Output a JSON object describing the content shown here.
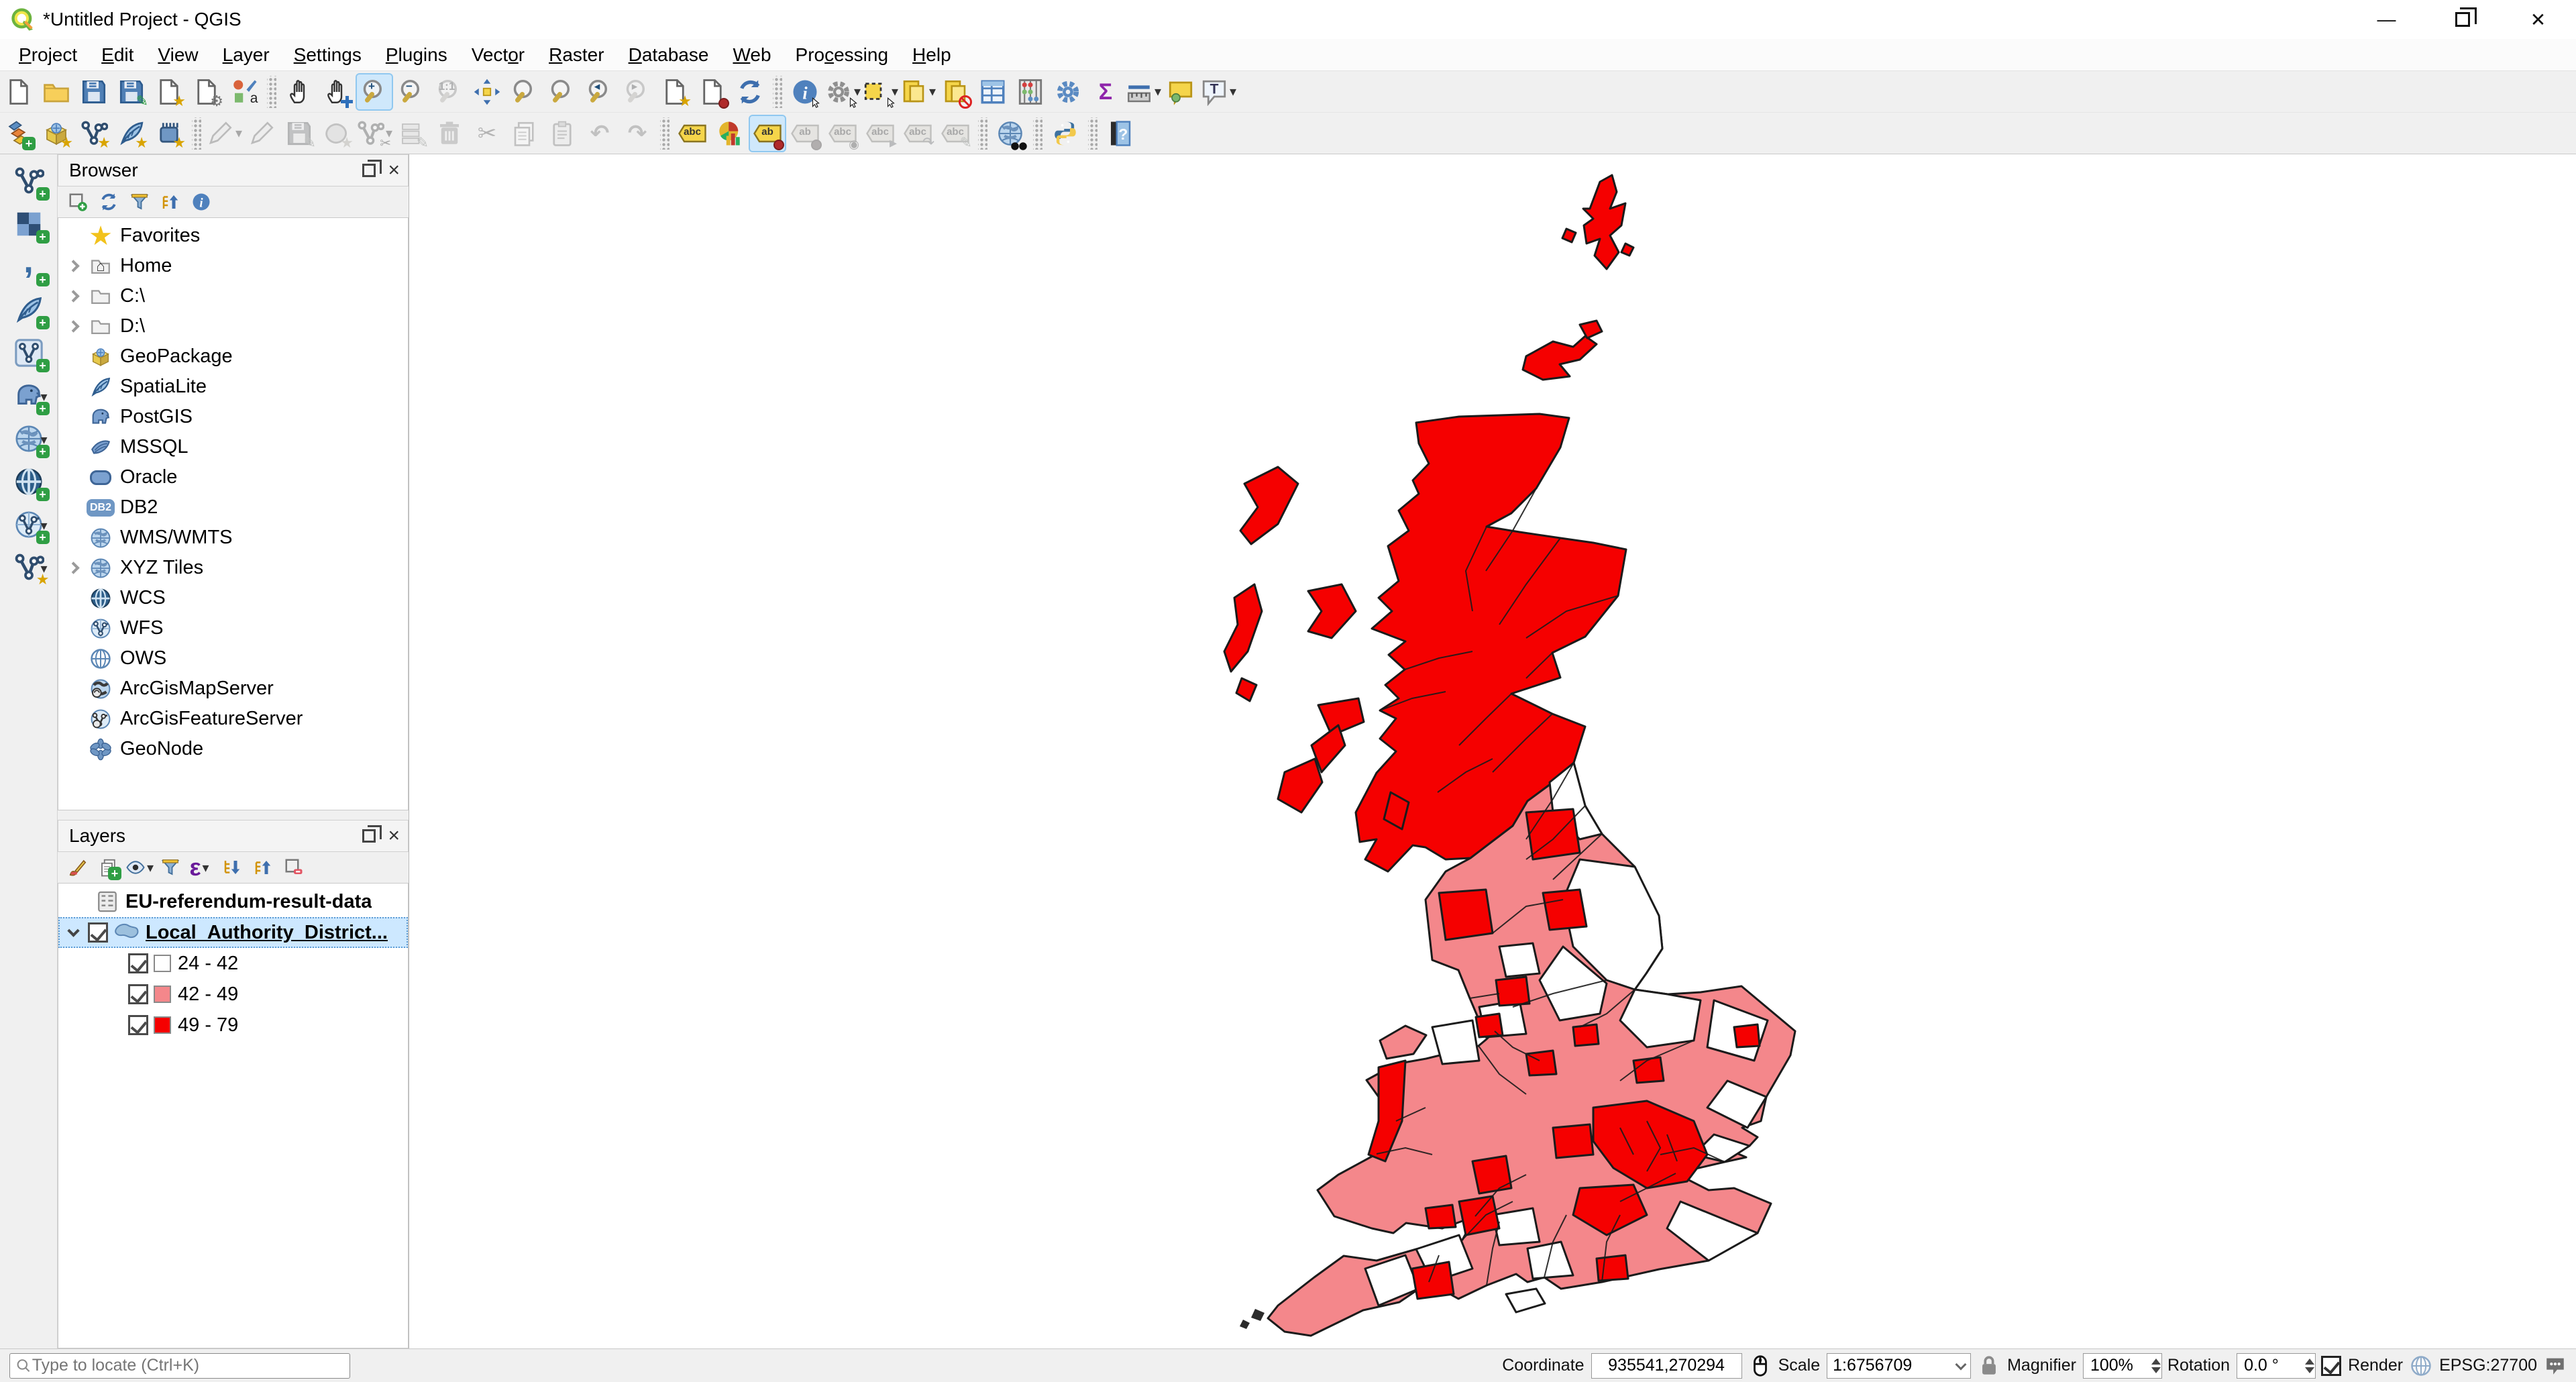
{
  "window": {
    "title": "*Untitled Project - QGIS"
  },
  "menubar": {
    "items": [
      {
        "name": "project",
        "pre": "",
        "key": "P",
        "post": "roject"
      },
      {
        "name": "edit",
        "pre": "",
        "key": "E",
        "post": "dit"
      },
      {
        "name": "view",
        "pre": "",
        "key": "V",
        "post": "iew"
      },
      {
        "name": "layer",
        "pre": "",
        "key": "L",
        "post": "ayer"
      },
      {
        "name": "settings",
        "pre": "",
        "key": "S",
        "post": "ettings"
      },
      {
        "name": "plugins",
        "pre": "",
        "key": "P",
        "post": "lugins"
      },
      {
        "name": "vector",
        "pre": "Vect",
        "key": "o",
        "post": "r"
      },
      {
        "name": "raster",
        "pre": "",
        "key": "R",
        "post": "aster"
      },
      {
        "name": "database",
        "pre": "",
        "key": "D",
        "post": "atabase"
      },
      {
        "name": "web",
        "pre": "",
        "key": "W",
        "post": "eb"
      },
      {
        "name": "processing",
        "pre": "Pro",
        "key": "c",
        "post": "essing"
      },
      {
        "name": "help",
        "pre": "",
        "key": "H",
        "post": "elp"
      }
    ]
  },
  "toolbars": {
    "row1": [
      {
        "name": "new-project",
        "icon": "page"
      },
      {
        "name": "open-project",
        "icon": "folder"
      },
      {
        "name": "save-project",
        "icon": "floppy"
      },
      {
        "name": "save-project-as",
        "icon": "floppy",
        "badge": "pencil"
      },
      {
        "name": "new-print-layout",
        "icon": "page",
        "badge": "star"
      },
      {
        "name": "show-layout-manager",
        "icon": "page",
        "badge": "wrench"
      },
      {
        "name": "style-manager",
        "icon": "style"
      },
      {
        "sep": true
      },
      {
        "name": "pan-map",
        "icon": "hand"
      },
      {
        "name": "pan-map-to-selection",
        "icon": "hand",
        "badge": "arrows"
      },
      {
        "name": "zoom-in",
        "icon": "mag",
        "glyph": "+",
        "active": true
      },
      {
        "name": "zoom-out",
        "icon": "mag",
        "glyph": "−"
      },
      {
        "name": "zoom-native-resolution",
        "icon": "mag",
        "glyph": "1:1",
        "disabled": true
      },
      {
        "name": "zoom-full",
        "icon": "arr4"
      },
      {
        "name": "zoom-to-selection",
        "icon": "mag",
        "tint": "#e8c400"
      },
      {
        "name": "zoom-to-layer",
        "icon": "mag",
        "tint": "#9a9a9a"
      },
      {
        "name": "zoom-last",
        "icon": "mag",
        "glyph": "◂"
      },
      {
        "name": "zoom-next",
        "icon": "mag",
        "glyph": "▸",
        "disabled": true
      },
      {
        "name": "new-spatial-bookmark",
        "icon": "page",
        "badge": "star"
      },
      {
        "name": "show-spatial-bookmarks",
        "icon": "page",
        "badge": "pin"
      },
      {
        "name": "refresh-map",
        "icon": "refresh"
      },
      {
        "sep": true
      },
      {
        "name": "identify-features",
        "icon": "info",
        "badge": "cursor"
      },
      {
        "name": "run-feature-action",
        "icon": "gear",
        "badge": "cursor",
        "dd": true,
        "disabled": false
      },
      {
        "name": "select-features",
        "icon": "selrect",
        "badge": "cursor",
        "dd": true
      },
      {
        "name": "select-features-by-value",
        "icon": "form",
        "dd": true
      },
      {
        "name": "deselect-all",
        "icon": "form",
        "badge": "no"
      },
      {
        "name": "open-attribute-table",
        "icon": "table"
      },
      {
        "name": "open-field-calculator",
        "icon": "abacus"
      },
      {
        "name": "processing-toolbox",
        "icon": "gear2"
      },
      {
        "name": "statistical-summary",
        "icon": "sigma"
      },
      {
        "name": "measure-line",
        "icon": "ruler",
        "dd": true
      },
      {
        "name": "map-tips",
        "icon": "bubble"
      },
      {
        "name": "text-annotation",
        "icon": "tbub",
        "dd": true
      }
    ],
    "row2": [
      {
        "name": "open-data-source-manager",
        "icon": "layers",
        "badge": "plus"
      },
      {
        "name": "new-geopackage-layer",
        "icon": "box",
        "badge": "star"
      },
      {
        "name": "new-shapefile-layer",
        "icon": "vn",
        "badge": "star"
      },
      {
        "name": "new-spatialite-layer",
        "icon": "feather",
        "badge": "star"
      },
      {
        "name": "new-virtual-layer",
        "icon": "chip",
        "badge": "star"
      },
      {
        "sep": true
      },
      {
        "name": "current-edits",
        "icon": "pen",
        "dd": true,
        "disabled": true
      },
      {
        "name": "toggle-editing",
        "icon": "pen",
        "disabled": true
      },
      {
        "name": "save-layer-edits",
        "icon": "floppy",
        "badge": "pencil",
        "disabled": true
      },
      {
        "name": "add-polygon-feature",
        "icon": "blob",
        "badge": "star",
        "disabled": true
      },
      {
        "name": "vertex-tool",
        "icon": "vn",
        "badge": "sci",
        "dd": true,
        "disabled": true
      },
      {
        "name": "modify-attributes-of-selected-features",
        "icon": "rows",
        "badge": "pencil",
        "disabled": true
      },
      {
        "name": "delete-selected",
        "icon": "trash",
        "disabled": true
      },
      {
        "name": "cut-features",
        "icon": "sci",
        "disabled": true
      },
      {
        "name": "copy-features",
        "icon": "pap",
        "disabled": true
      },
      {
        "name": "paste-features",
        "icon": "clip",
        "disabled": true
      },
      {
        "name": "undo",
        "icon": "undo",
        "disabled": true
      },
      {
        "name": "redo",
        "icon": "redo",
        "disabled": true
      },
      {
        "sep": true
      },
      {
        "name": "layer-labeling-options",
        "icon": "tag",
        "glyph": "abc"
      },
      {
        "name": "layer-diagram-options",
        "icon": "pie"
      },
      {
        "name": "highlight-pinned-labels",
        "icon": "tag",
        "glyph": "ab",
        "badge": "pin",
        "active": true
      },
      {
        "name": "pin-unpin-labels",
        "icon": "tag",
        "glyph": "ab",
        "badge": "pin",
        "disabled": true
      },
      {
        "name": "show-hide-labels",
        "icon": "tag",
        "glyph": "abc",
        "badge": "eye",
        "disabled": true
      },
      {
        "name": "move-label",
        "icon": "tag",
        "glyph": "abc",
        "badge": "arrow",
        "disabled": true
      },
      {
        "name": "rotate-label",
        "icon": "tag",
        "glyph": "abc",
        "badge": "rot",
        "disabled": true
      },
      {
        "name": "change-label-properties",
        "icon": "tag",
        "glyph": "abc",
        "badge": "pencil",
        "disabled": true
      },
      {
        "sep": true
      },
      {
        "name": "metasearch-csw-client",
        "icon": "globe",
        "badge": "binoc"
      },
      {
        "sep": true
      },
      {
        "name": "python-console",
        "icon": "py"
      },
      {
        "sep": true
      },
      {
        "name": "help-contents",
        "icon": "book",
        "glyph": "?"
      }
    ],
    "left": [
      {
        "name": "add-vector-layer",
        "icon": "vn",
        "badge": "plus"
      },
      {
        "name": "add-raster-layer",
        "icon": "chk",
        "badge": "plus"
      },
      {
        "name": "add-delimited-text-layer",
        "icon": "comma",
        "badge": "plus"
      },
      {
        "name": "add-spatialite-layer",
        "icon": "feather",
        "badge": "plus"
      },
      {
        "name": "add-mesh-layer",
        "icon": "vsq",
        "badge": "plus"
      },
      {
        "name": "add-postgis-layers",
        "icon": "ele",
        "badge": "plus",
        "dd": true
      },
      {
        "name": "add-wms-wmts-layer",
        "icon": "globe",
        "badge": "plus",
        "dd": true
      },
      {
        "name": "add-wcs-layer",
        "icon": "globe2",
        "badge": "plus"
      },
      {
        "name": "add-wfs-layer",
        "icon": "globev",
        "badge": "plus",
        "dd": true
      },
      {
        "name": "new-virtual-layer-2",
        "icon": "vn",
        "badge": "star",
        "dd": true
      }
    ]
  },
  "browser": {
    "title": "Browser",
    "tools": [
      {
        "name": "add-selected-layers",
        "icon": "addsq"
      },
      {
        "name": "refresh-browser",
        "icon": "refresh"
      },
      {
        "name": "filter-browser",
        "icon": "funnel"
      },
      {
        "name": "collapse-all",
        "icon": "triu"
      },
      {
        "name": "enable-properties-widget",
        "icon": "info"
      }
    ],
    "items": [
      {
        "icon": "star",
        "label": "Favorites",
        "expand": "none"
      },
      {
        "icon": "home",
        "label": "Home",
        "expand": "closed"
      },
      {
        "icon": "folderg",
        "label": "C:\\",
        "expand": "closed"
      },
      {
        "icon": "folderg",
        "label": "D:\\",
        "expand": "closed"
      },
      {
        "icon": "box",
        "label": "GeoPackage",
        "expand": "none"
      },
      {
        "icon": "feather",
        "label": "SpatiaLite",
        "expand": "none"
      },
      {
        "icon": "ele",
        "label": "PostGIS",
        "expand": "none"
      },
      {
        "icon": "mssql",
        "label": "MSSQL",
        "expand": "none"
      },
      {
        "icon": "oracle",
        "label": "Oracle",
        "expand": "none"
      },
      {
        "icon": "db2",
        "label": "DB2",
        "expand": "none"
      },
      {
        "icon": "globe",
        "label": "WMS/WMTS",
        "expand": "none"
      },
      {
        "icon": "globe",
        "label": "XYZ Tiles",
        "expand": "closed"
      },
      {
        "icon": "globe2",
        "label": "WCS",
        "expand": "none"
      },
      {
        "icon": "globev",
        "label": "WFS",
        "expand": "none"
      },
      {
        "icon": "globeo",
        "label": "OWS",
        "expand": "none"
      },
      {
        "icon": "globea",
        "label": "ArcGisMapServer",
        "expand": "none"
      },
      {
        "icon": "globeav",
        "label": "ArcGisFeatureServer",
        "expand": "none"
      },
      {
        "icon": "ast",
        "label": "GeoNode",
        "expand": "none"
      }
    ]
  },
  "layers_panel": {
    "title": "Layers",
    "tools": [
      {
        "name": "open-layer-styling-dock",
        "icon": "brush"
      },
      {
        "name": "add-group",
        "icon": "pap",
        "badge": "plus"
      },
      {
        "name": "manage-map-themes",
        "icon": "eye",
        "dd": true
      },
      {
        "name": "filter-legend",
        "icon": "funnel"
      },
      {
        "name": "filter-legend-by-expression",
        "icon": "eps",
        "dd": true
      },
      {
        "name": "expand-all",
        "icon": "trid"
      },
      {
        "name": "collapse-all-layers",
        "icon": "triu"
      },
      {
        "name": "remove-layer-group",
        "icon": "remsq"
      }
    ],
    "table_layer": "EU-referendum-result-data",
    "vector_layer": "Local_Authority_District...",
    "classes": [
      {
        "label": "24 - 42",
        "color": "#ffffff"
      },
      {
        "label": "42 - 49",
        "color": "#f4878b"
      },
      {
        "label": "49 - 79",
        "color": "#f50000"
      }
    ]
  },
  "map": {
    "colors": {
      "low": "#ffffff",
      "mid": "#f4878b",
      "high": "#f50000",
      "outline": "#1b1b1b",
      "background": "#ffffff"
    },
    "legend_classes": [
      "24 - 42",
      "42 - 49",
      "49 - 79"
    ]
  },
  "statusbar": {
    "locate_placeholder": "Type to locate (Ctrl+K)",
    "coordinate_label": "Coordinate",
    "coordinate_value": "935541,270294",
    "scale_label": "Scale",
    "scale_value": "1:6756709",
    "magnifier_label": "Magnifier",
    "magnifier_value": "100%",
    "rotation_label": "Rotation",
    "rotation_value": "0.0 °",
    "render_label": "Render",
    "epsg_label": "EPSG:27700"
  }
}
